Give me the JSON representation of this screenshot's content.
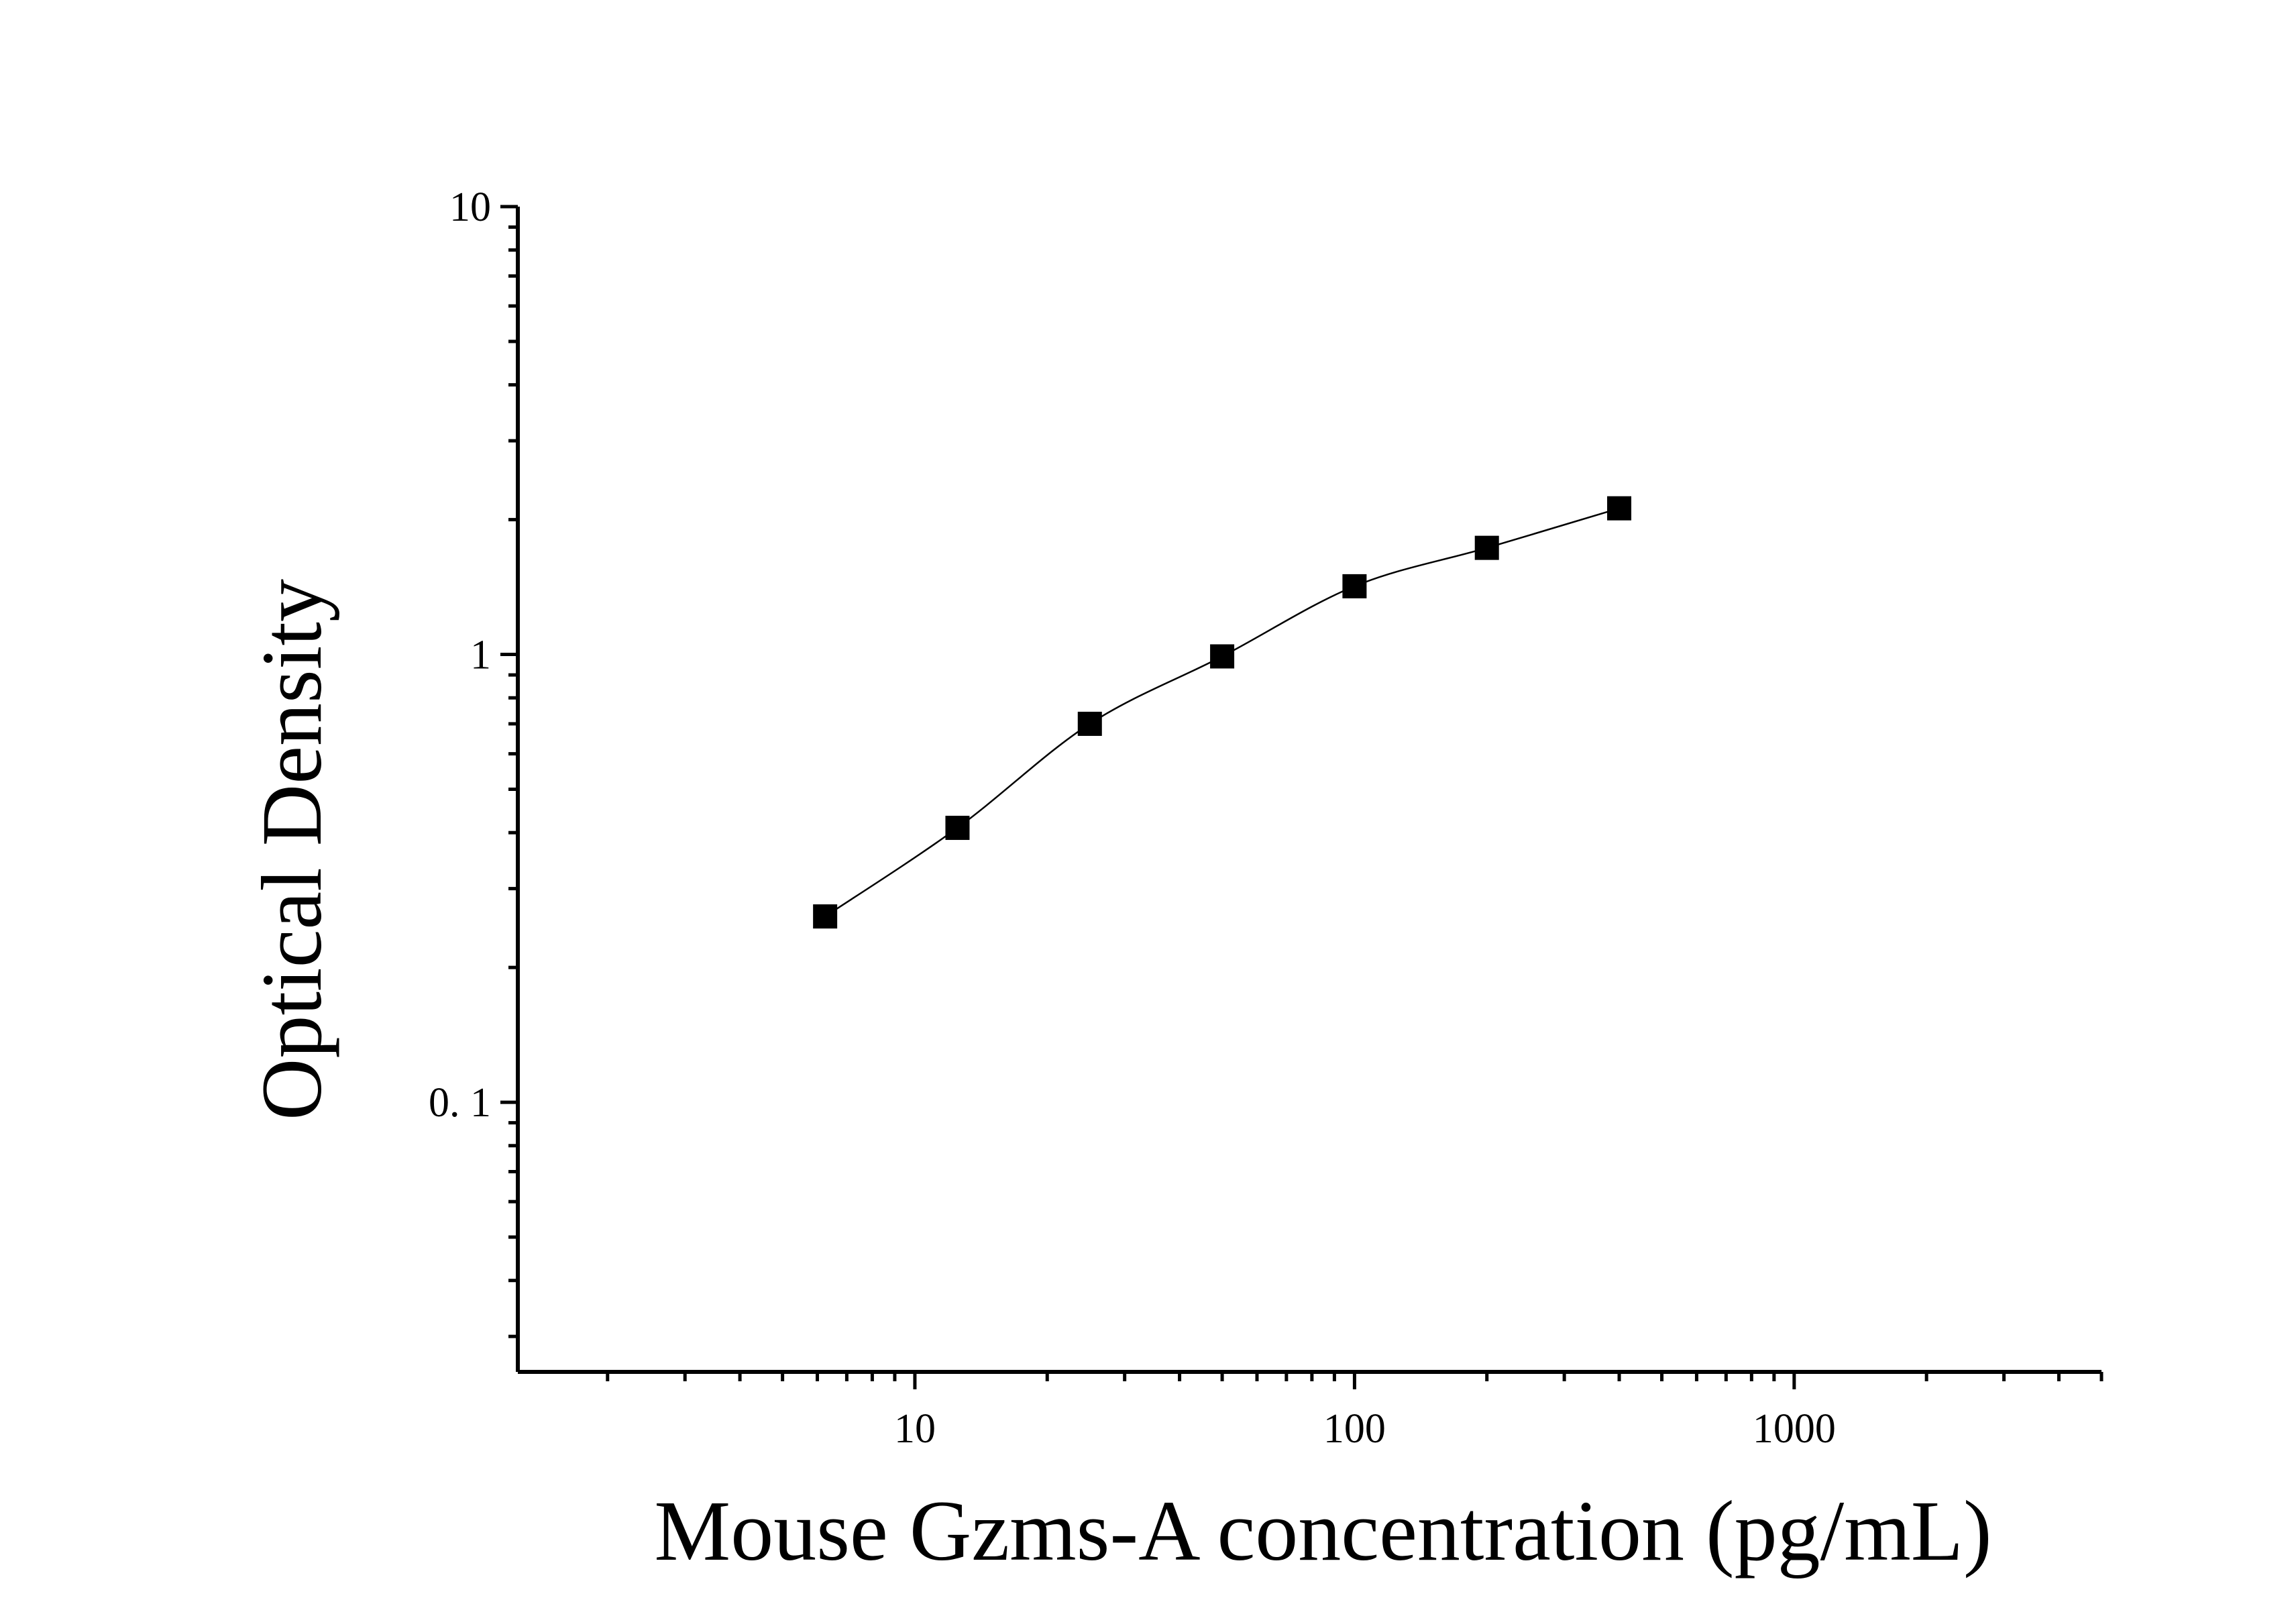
{
  "chart_data": {
    "type": "scatter",
    "title": "",
    "xlabel": "Mouse Gzms-A concentration (pg/mL)",
    "ylabel": "Optical Density",
    "x_scale": "log",
    "y_scale": "log",
    "xlim": [
      1.25,
      5000
    ],
    "ylim": [
      0.025,
      10
    ],
    "x_ticks": [
      {
        "value": 10,
        "label": "10"
      },
      {
        "value": 100,
        "label": "100"
      },
      {
        "value": 1000,
        "label": "1000"
      }
    ],
    "y_ticks": [
      {
        "value": 0.1,
        "label": "0. 1"
      },
      {
        "value": 1,
        "label": "1"
      },
      {
        "value": 10,
        "label": "10"
      }
    ],
    "grid": false,
    "legend": "none",
    "colors": {
      "marker": "#000000",
      "line": "#000000",
      "axis": "#000000"
    },
    "series": [
      {
        "marker": "square",
        "x": [
          6.25,
          12.5,
          25,
          50,
          100,
          200,
          400
        ],
        "y": [
          0.26,
          0.41,
          0.7,
          0.99,
          1.42,
          1.73,
          2.12
        ],
        "fit": "smooth-curve"
      }
    ]
  }
}
